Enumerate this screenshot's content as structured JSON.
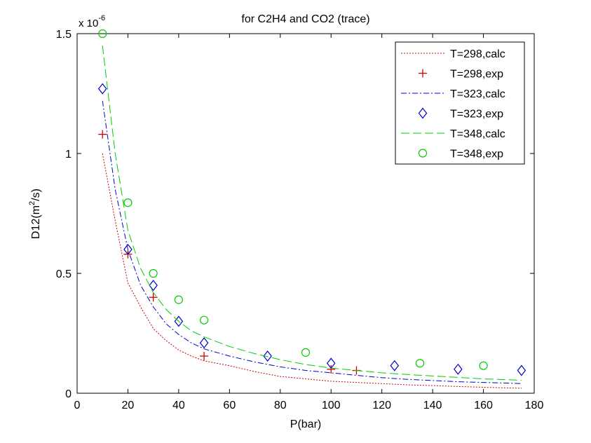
{
  "chart_data": {
    "type": "line",
    "title": "for C2H4 and CO2 (trace)",
    "xlabel": "P(bar)",
    "ylabel_prefix": "D12(m",
    "ylabel_sup": "2",
    "ylabel_suffix": "/s)",
    "y_multiplier_prefix": "x 10",
    "y_multiplier_exp": "-6",
    "xlim": [
      0,
      180
    ],
    "ylim": [
      0,
      1.5
    ],
    "xticks": [
      0,
      20,
      40,
      60,
      80,
      100,
      120,
      140,
      160,
      180
    ],
    "yticks": [
      0,
      0.5,
      1,
      1.5
    ],
    "ytick_labels": [
      "0",
      "0.5",
      "1",
      "1.5"
    ],
    "grid": false,
    "legend_position": "top-right",
    "series": [
      {
        "name": "T=298,calc",
        "kind": "line",
        "color": "#cc0000",
        "dash": "dotted",
        "x": [
          10,
          15,
          20,
          25,
          30,
          35,
          40,
          45,
          50,
          60,
          70,
          80,
          90,
          100,
          110,
          120,
          130,
          140,
          150,
          160,
          170,
          175
        ],
        "y": [
          1.0,
          0.72,
          0.46,
          0.36,
          0.27,
          0.22,
          0.18,
          0.155,
          0.135,
          0.115,
          0.09,
          0.07,
          0.06,
          0.05,
          0.045,
          0.04,
          0.035,
          0.032,
          0.028,
          0.025,
          0.022,
          0.021
        ]
      },
      {
        "name": "T=298,exp",
        "kind": "marker",
        "marker": "plus",
        "color": "#cc0000",
        "x": [
          10,
          20,
          30,
          50,
          100,
          110
        ],
        "y": [
          1.08,
          0.58,
          0.4,
          0.155,
          0.1,
          0.095
        ]
      },
      {
        "name": "T=323,calc",
        "kind": "line",
        "color": "#0000cc",
        "dash": "dashdot",
        "x": [
          10,
          15,
          20,
          25,
          30,
          35,
          40,
          45,
          50,
          60,
          70,
          80,
          90,
          100,
          110,
          120,
          130,
          140,
          150,
          160,
          170,
          175
        ],
        "y": [
          1.22,
          0.85,
          0.6,
          0.45,
          0.36,
          0.29,
          0.245,
          0.21,
          0.185,
          0.155,
          0.13,
          0.11,
          0.095,
          0.085,
          0.075,
          0.065,
          0.058,
          0.053,
          0.048,
          0.045,
          0.042,
          0.04
        ]
      },
      {
        "name": "T=323,exp",
        "kind": "marker",
        "marker": "diamond",
        "color": "#0000cc",
        "x": [
          10,
          20,
          30,
          40,
          50,
          75,
          100,
          125,
          150,
          175
        ],
        "y": [
          1.27,
          0.6,
          0.45,
          0.3,
          0.21,
          0.155,
          0.125,
          0.115,
          0.1,
          0.095
        ]
      },
      {
        "name": "T=348,calc",
        "kind": "line",
        "color": "#00cc00",
        "dash": "dashed",
        "x": [
          10,
          15,
          20,
          25,
          30,
          35,
          40,
          45,
          50,
          60,
          70,
          80,
          90,
          100,
          110,
          120,
          130,
          140,
          150,
          160,
          170,
          175
        ],
        "y": [
          1.45,
          1.0,
          0.68,
          0.52,
          0.42,
          0.35,
          0.3,
          0.26,
          0.235,
          0.195,
          0.165,
          0.14,
          0.12,
          0.105,
          0.095,
          0.085,
          0.078,
          0.072,
          0.066,
          0.06,
          0.056,
          0.054
        ]
      },
      {
        "name": "T=348,exp",
        "kind": "marker",
        "marker": "circle",
        "color": "#00cc00",
        "x": [
          10,
          20,
          30,
          40,
          50,
          90,
          135,
          160
        ],
        "y": [
          1.5,
          0.795,
          0.5,
          0.39,
          0.305,
          0.17,
          0.125,
          0.115
        ]
      }
    ]
  }
}
